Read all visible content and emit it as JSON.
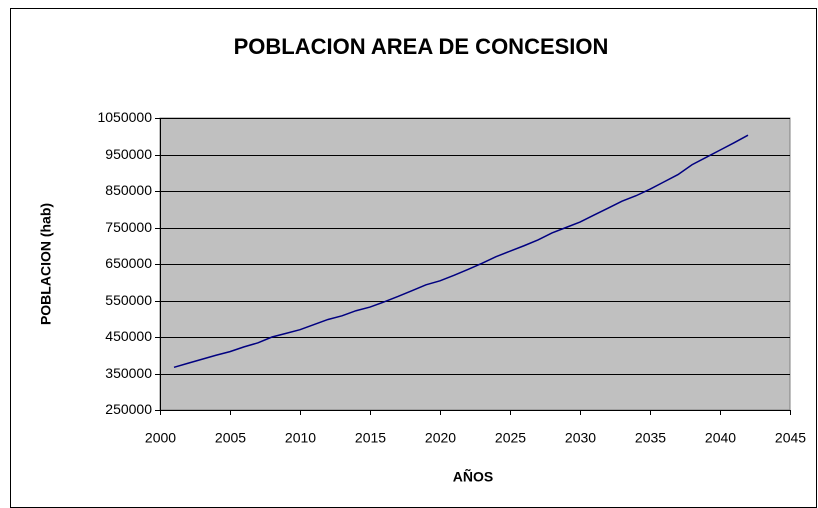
{
  "chart_data": {
    "type": "line",
    "title": "POBLACION AREA DE CONCESION",
    "xlabel": "AÑOS",
    "ylabel": "POBLACION (hab)",
    "x": [
      2001,
      2002,
      2003,
      2004,
      2005,
      2006,
      2007,
      2008,
      2009,
      2010,
      2011,
      2012,
      2013,
      2014,
      2015,
      2016,
      2017,
      2018,
      2019,
      2020,
      2021,
      2022,
      2023,
      2024,
      2025,
      2026,
      2027,
      2028,
      2029,
      2030,
      2031,
      2032,
      2033,
      2034,
      2035,
      2036,
      2037,
      2038,
      2039,
      2040,
      2041,
      2042
    ],
    "series": [
      {
        "name": "POBLACION",
        "color": "#000080",
        "values": [
          367000,
          378000,
          389000,
          400000,
          410000,
          423000,
          434000,
          450000,
          460000,
          470000,
          484000,
          498000,
          508000,
          522000,
          532000,
          546000,
          561000,
          577000,
          593000,
          604000,
          619000,
          635000,
          652000,
          670000,
          685000,
          700000,
          716000,
          735000,
          750000,
          765000,
          784000,
          803000,
          822000,
          837000,
          855000,
          875000,
          895000,
          922000,
          942000,
          962000,
          982000,
          1003000
        ]
      }
    ],
    "xlim": [
      2000,
      2045
    ],
    "xticks": [
      2000,
      2005,
      2010,
      2015,
      2020,
      2025,
      2030,
      2035,
      2040,
      2045
    ],
    "ylim": [
      250000,
      1050000
    ],
    "yticks": [
      250000,
      350000,
      450000,
      550000,
      650000,
      750000,
      850000,
      950000,
      1050000
    ],
    "grid": true,
    "plot_background": "#c0c0c0"
  }
}
